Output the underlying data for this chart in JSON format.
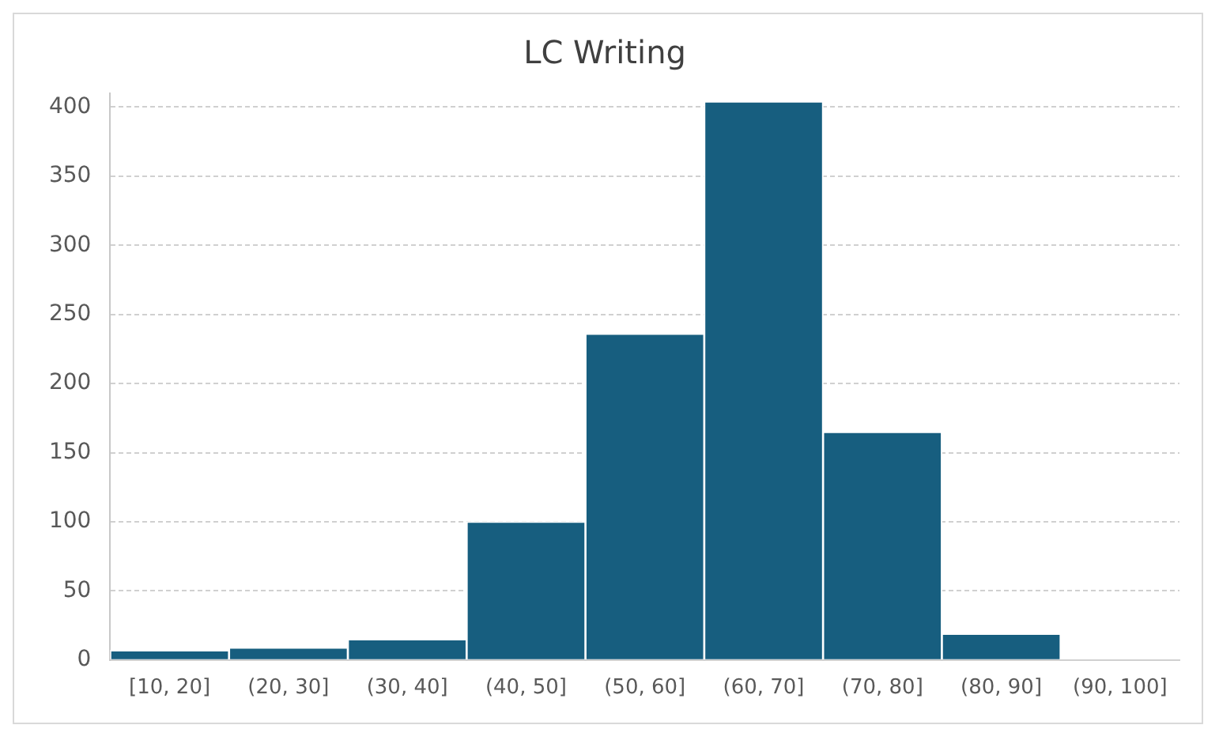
{
  "chart_data": {
    "type": "bar",
    "title": "LC Writing",
    "categories": [
      "[10, 20]",
      "(20, 30]",
      "(30, 40]",
      "(40, 50]",
      "(50, 60]",
      "(60, 70]",
      "(70, 80]",
      "(80, 90]",
      "(90, 100]"
    ],
    "values": [
      7,
      9,
      15,
      100,
      236,
      404,
      165,
      19,
      0
    ],
    "color": "#175e7f",
    "ylim": [
      0,
      410
    ],
    "yticks": [
      0,
      50,
      100,
      150,
      200,
      250,
      300,
      350,
      400
    ],
    "grid": "y"
  }
}
